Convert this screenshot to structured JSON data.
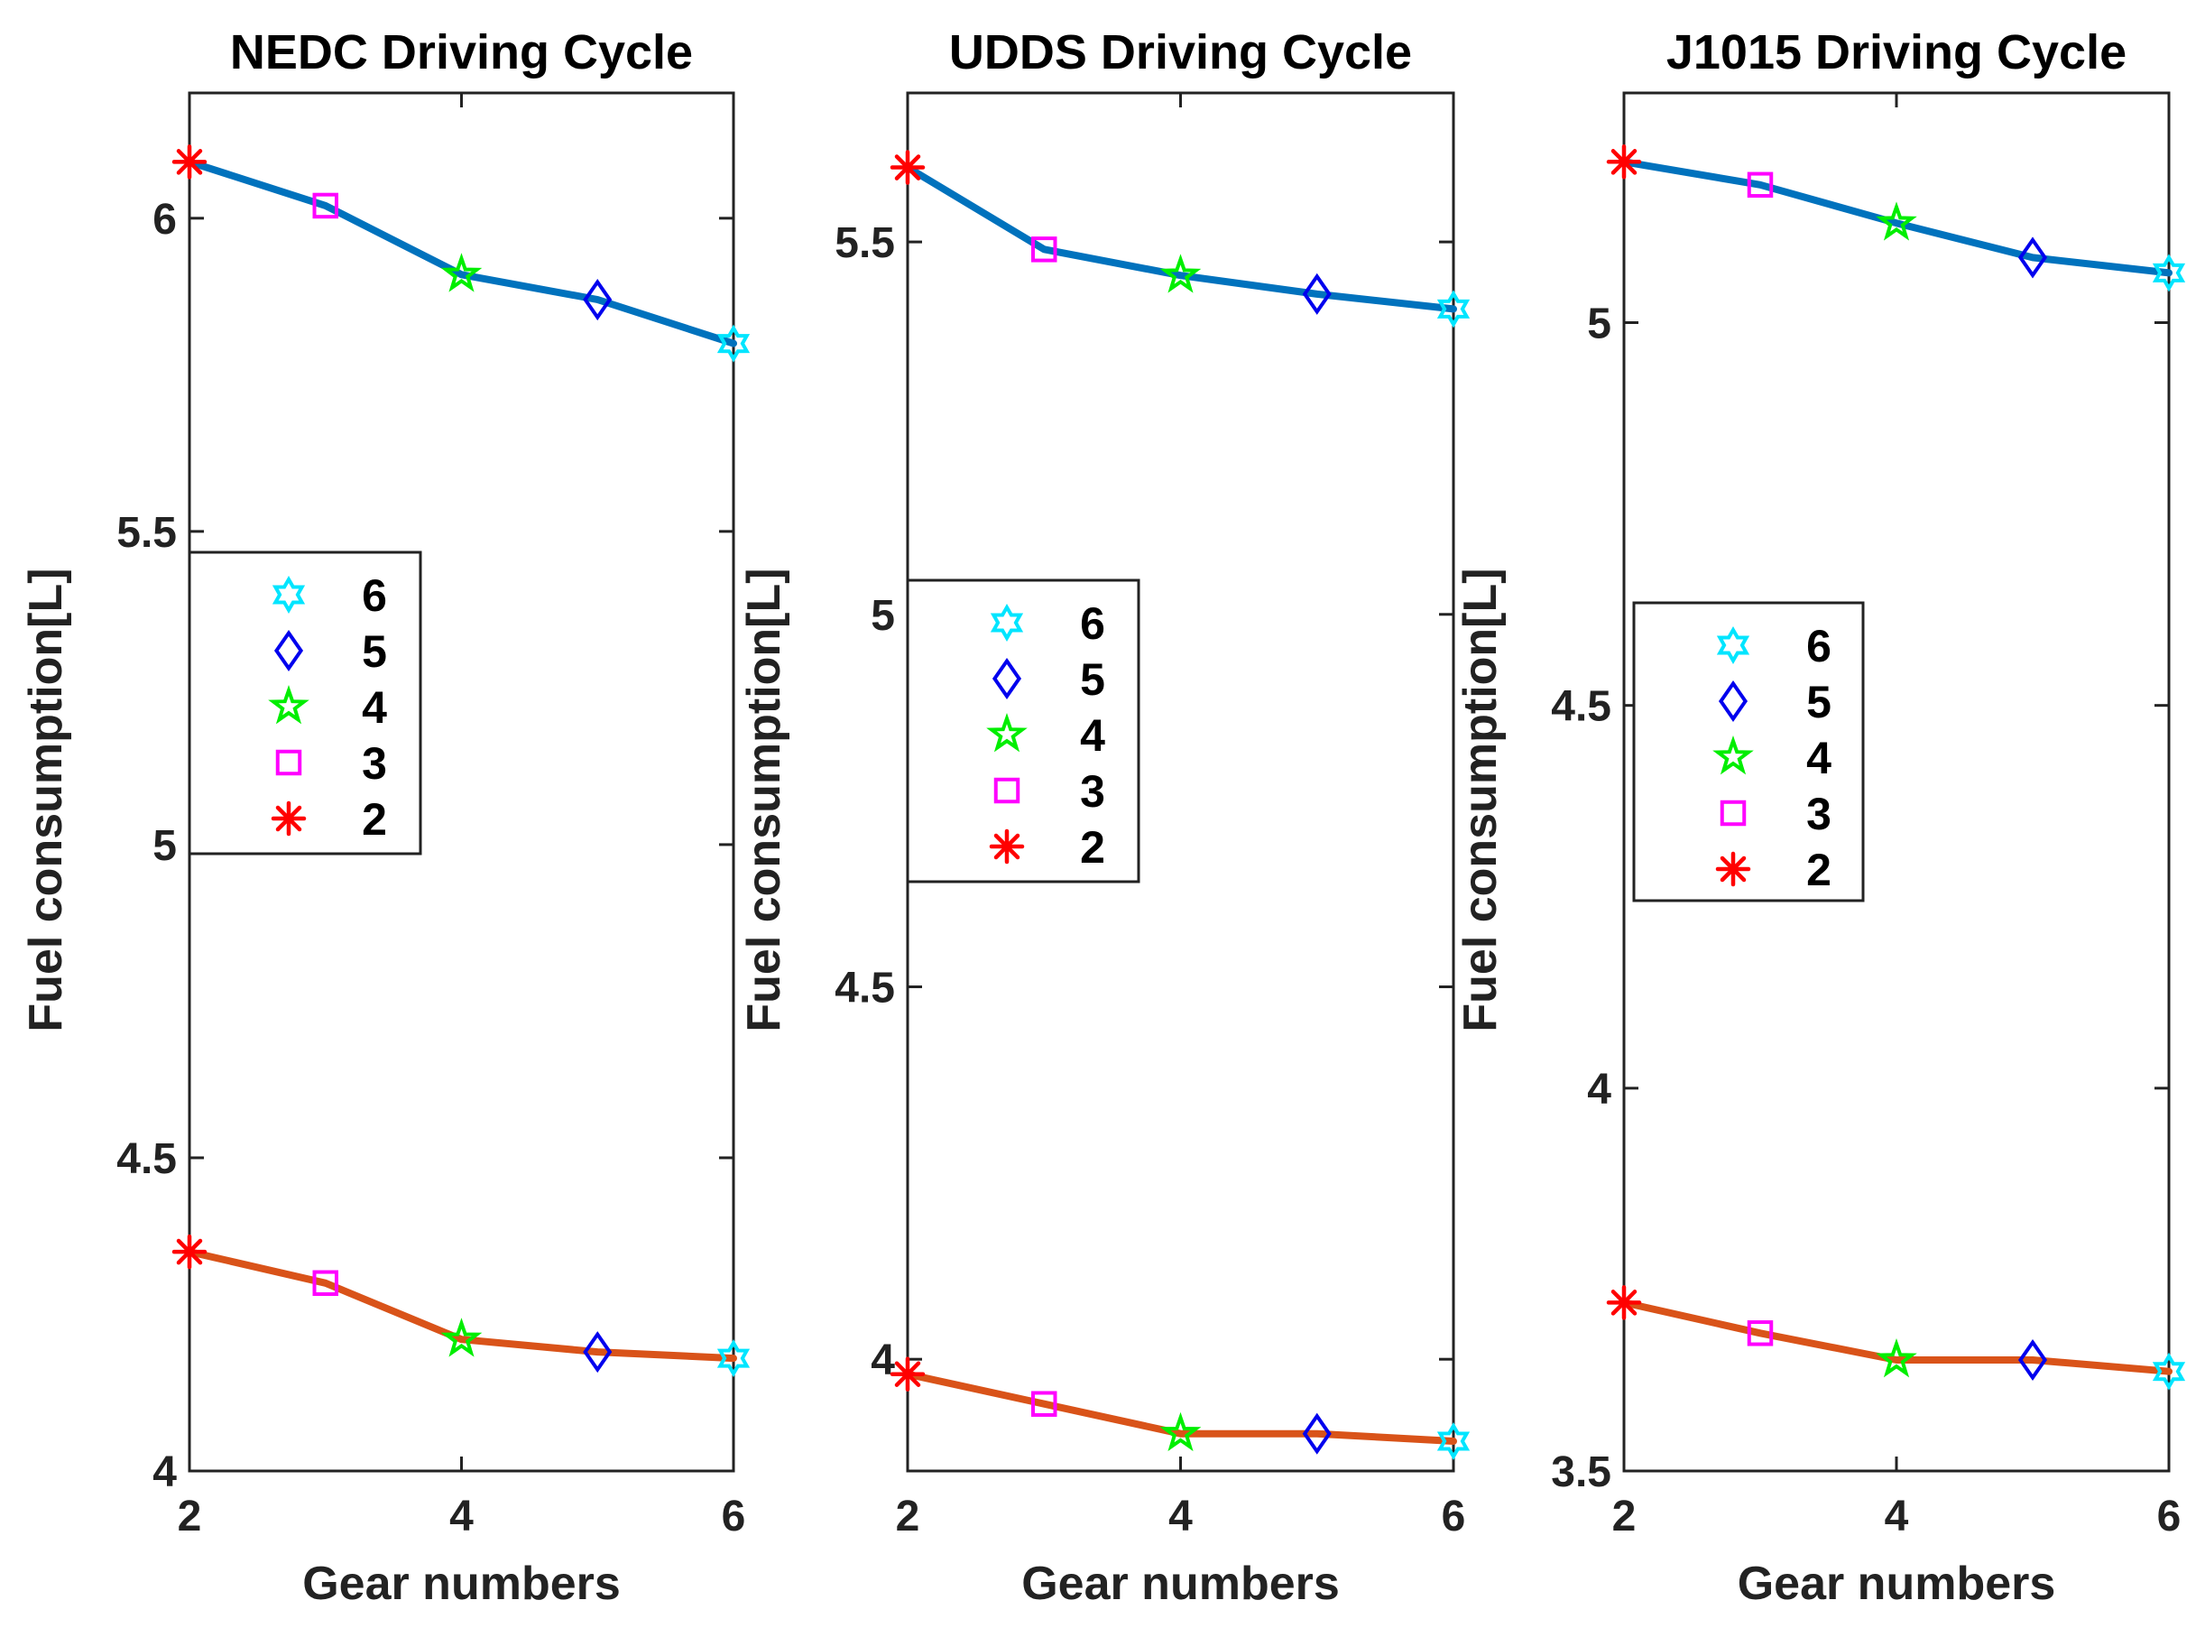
{
  "colors": {
    "series_upper": "#0072BD",
    "series_lower": "#D95319",
    "marker_6": "#00E5FF",
    "marker_5": "#0000EE",
    "marker_4": "#00EE00",
    "marker_3": "#FF00FF",
    "marker_2": "#FF0000"
  },
  "chart_data": [
    {
      "type": "line",
      "title": "NEDC Driving Cycle",
      "xlabel": "Gear numbers",
      "ylabel": "Fuel consumption[L]",
      "xlim": [
        2,
        6
      ],
      "ylim": [
        4,
        6.2
      ],
      "xticks": [
        2,
        4,
        6
      ],
      "xtick_labels": [
        "2",
        "4",
        "6"
      ],
      "yticks": [
        4,
        4.5,
        5,
        5.5,
        6
      ],
      "ytick_labels": [
        "4",
        "4.5",
        "5",
        "5.5",
        "6"
      ],
      "x": [
        2,
        3,
        4,
        5,
        6
      ],
      "series": [
        {
          "name": "upper",
          "values": [
            6.09,
            6.02,
            5.91,
            5.87,
            5.8
          ]
        },
        {
          "name": "lower",
          "values": [
            4.35,
            4.3,
            4.21,
            4.19,
            4.18
          ]
        }
      ],
      "legend": {
        "position": "center-left",
        "entries": [
          {
            "marker": "hexagram",
            "label": "6"
          },
          {
            "marker": "diamond",
            "label": "5"
          },
          {
            "marker": "pentagram",
            "label": "4"
          },
          {
            "marker": "square",
            "label": "3"
          },
          {
            "marker": "asterisk",
            "label": "2"
          }
        ]
      }
    },
    {
      "type": "line",
      "title": "UDDS Driving Cycle",
      "xlabel": "Gear numbers",
      "ylabel": "Fuel consumption[L]",
      "xlim": [
        2,
        6
      ],
      "ylim": [
        3.85,
        5.7
      ],
      "xticks": [
        2,
        4,
        6
      ],
      "xtick_labels": [
        "2",
        "4",
        "6"
      ],
      "yticks": [
        4,
        4.5,
        5,
        5.5
      ],
      "ytick_labels": [
        "4",
        "4.5",
        "5",
        "5.5"
      ],
      "x": [
        2,
        3,
        4,
        5,
        6
      ],
      "series": [
        {
          "name": "upper",
          "values": [
            5.6,
            5.49,
            5.455,
            5.43,
            5.41
          ]
        },
        {
          "name": "lower",
          "values": [
            3.98,
            3.94,
            3.9,
            3.9,
            3.89
          ]
        }
      ],
      "legend": {
        "position": "center-left",
        "entries": [
          {
            "marker": "hexagram",
            "label": "6"
          },
          {
            "marker": "diamond",
            "label": "5"
          },
          {
            "marker": "pentagram",
            "label": "4"
          },
          {
            "marker": "square",
            "label": "3"
          },
          {
            "marker": "asterisk",
            "label": "2"
          }
        ]
      }
    },
    {
      "type": "line",
      "title": "J1015 Driving Cycle",
      "xlabel": "Gear numbers",
      "ylabel": "Fuel consumption[L]",
      "xlim": [
        2,
        6
      ],
      "ylim": [
        3.5,
        5.3
      ],
      "xticks": [
        2,
        4,
        6
      ],
      "xtick_labels": [
        "2",
        "4",
        "6"
      ],
      "yticks": [
        3.5,
        4,
        4.5,
        5
      ],
      "ytick_labels": [
        "3.5",
        "4",
        "4.5",
        "5"
      ],
      "x": [
        2,
        3,
        4,
        5,
        6
      ],
      "series": [
        {
          "name": "upper",
          "values": [
            5.21,
            5.18,
            5.13,
            5.085,
            5.065
          ]
        },
        {
          "name": "lower",
          "values": [
            3.72,
            3.68,
            3.645,
            3.645,
            3.63
          ]
        }
      ],
      "legend": {
        "position": "center-left",
        "entries": [
          {
            "marker": "hexagram",
            "label": "6"
          },
          {
            "marker": "diamond",
            "label": "5"
          },
          {
            "marker": "pentagram",
            "label": "4"
          },
          {
            "marker": "square",
            "label": "3"
          },
          {
            "marker": "asterisk",
            "label": "2"
          }
        ]
      }
    }
  ]
}
